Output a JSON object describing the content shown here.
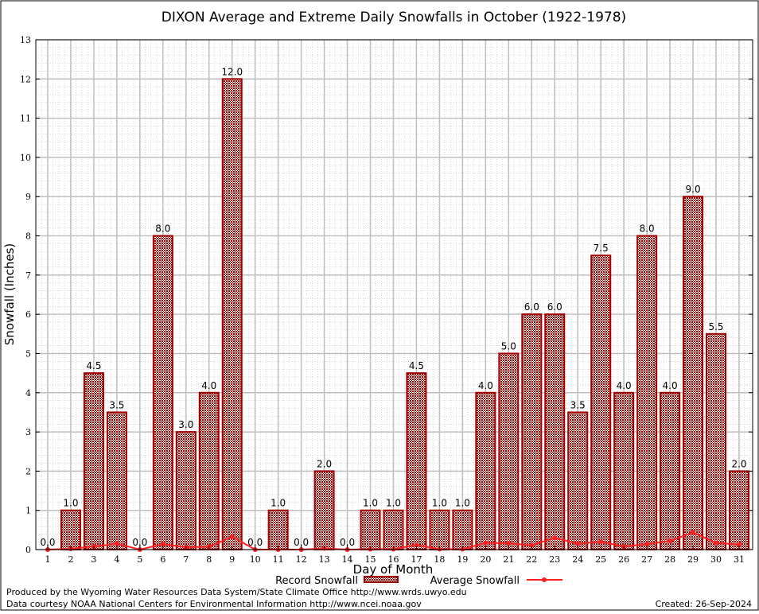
{
  "chart_data": {
    "type": "bar",
    "title": "DIXON Average and Extreme Daily Snowfalls in October (1922-1978)",
    "xlabel": "Day of Month",
    "ylabel": "Snowfall (Inches)",
    "ylim": [
      0,
      13
    ],
    "grid": true,
    "legend_placement": "bottom",
    "categories": [
      "1",
      "2",
      "3",
      "4",
      "5",
      "6",
      "7",
      "8",
      "9",
      "10",
      "11",
      "12",
      "13",
      "14",
      "15",
      "16",
      "17",
      "18",
      "19",
      "20",
      "21",
      "22",
      "23",
      "24",
      "25",
      "26",
      "27",
      "28",
      "29",
      "30",
      "31"
    ],
    "series": [
      {
        "name": "Record Snowfall",
        "type": "bar",
        "color": "#a00000",
        "values": [
          0.0,
          1.0,
          4.5,
          3.5,
          0.0,
          8.0,
          3.0,
          4.0,
          12.0,
          0.0,
          1.0,
          0.0,
          2.0,
          0.0,
          1.0,
          1.0,
          4.5,
          1.0,
          1.0,
          4.0,
          5.0,
          6.0,
          6.0,
          3.5,
          7.5,
          4.0,
          8.0,
          4.0,
          9.0,
          5.5,
          2.0
        ],
        "data_labels": [
          "0.0",
          "1.0",
          "4.5",
          "3.5",
          "0.0",
          "8.0",
          "3.0",
          "4.0",
          "12.0",
          "0.0",
          "1.0",
          "0.0",
          "2.0",
          "0.0",
          "1.0",
          "1.0",
          "4.5",
          "1.0",
          "1.0",
          "4.0",
          "5.0",
          "6.0",
          "6.0",
          "3.5",
          "7.5",
          "4.0",
          "8.0",
          "4.0",
          "9.0",
          "5.5",
          "2.0"
        ]
      },
      {
        "name": "Average Snowfall",
        "type": "line",
        "color": "#ff2020",
        "values": [
          0.0,
          0.02,
          0.08,
          0.15,
          0.0,
          0.14,
          0.06,
          0.07,
          0.33,
          0.0,
          0.0,
          0.0,
          0.03,
          0.0,
          0.01,
          0.01,
          0.12,
          0.01,
          0.01,
          0.17,
          0.16,
          0.11,
          0.3,
          0.15,
          0.2,
          0.08,
          0.14,
          0.22,
          0.44,
          0.17,
          0.13
        ]
      }
    ],
    "yticks": [
      "0",
      "1",
      "2",
      "3",
      "4",
      "5",
      "6",
      "7",
      "8",
      "9",
      "10",
      "11",
      "12",
      "13"
    ]
  },
  "footer": {
    "produced": "Produced by the Wyoming Water Resources Data System/State Climate Office http://www.wrds.uwyo.edu",
    "courtesy": "Data courtesy NOAA National Centers for Environmental Information http://www.ncei.noaa.gov",
    "created": "Created: 26-Sep-2024"
  }
}
